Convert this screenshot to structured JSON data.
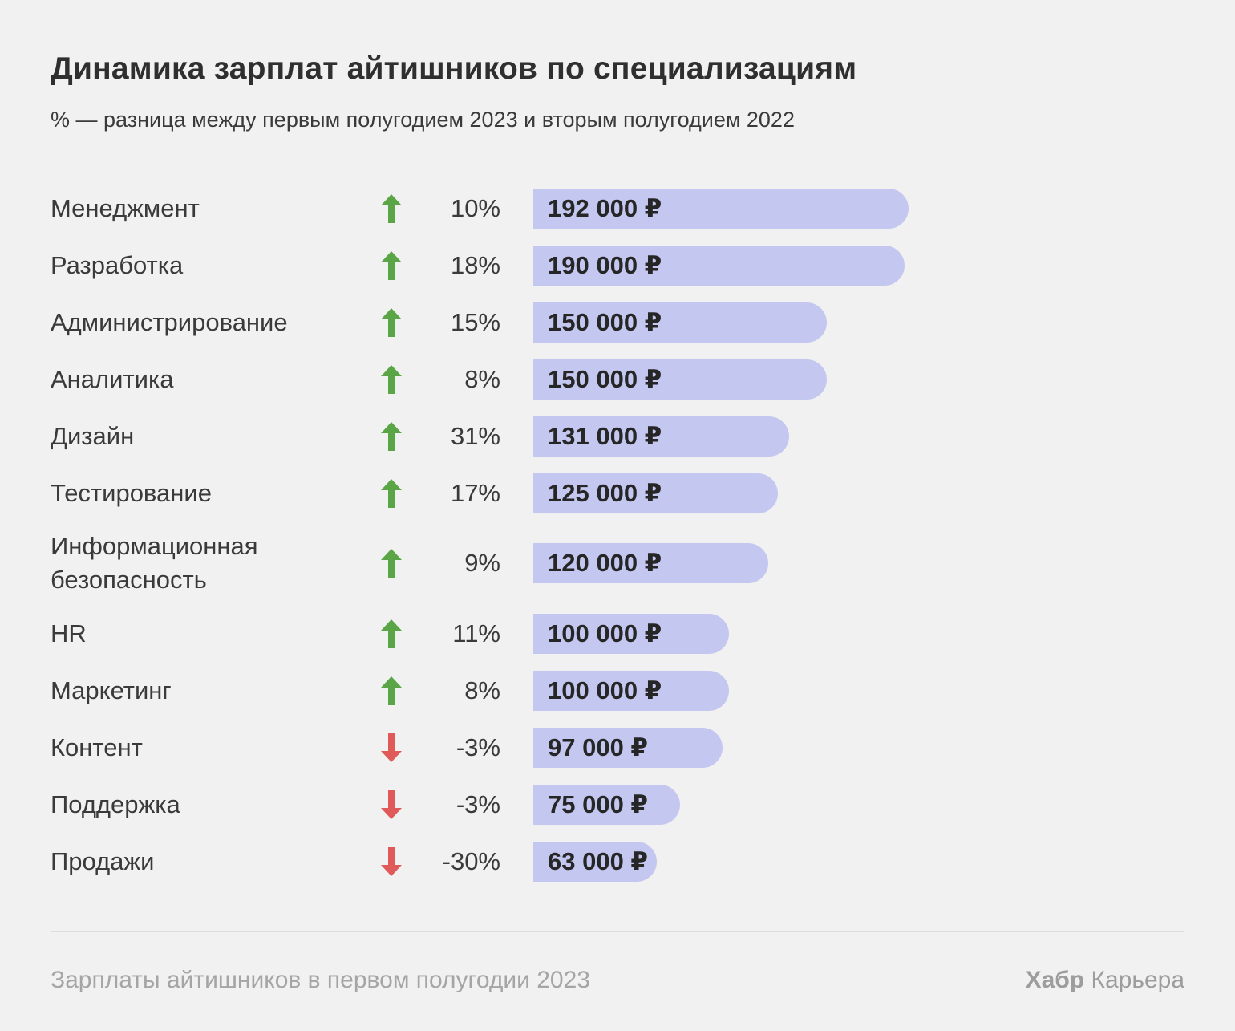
{
  "header": {
    "title": "Динамика зарплат айтишников по специализациям",
    "subtitle": "% — разница между первым полугодием 2023 и вторым полугодием 2022"
  },
  "footer": {
    "source": "Зарплаты айтишников в первом полугодии 2023",
    "brand_bold": "Хабр",
    "brand_rest": "Карьера"
  },
  "colors": {
    "bar": "#c4c8f0",
    "up": "#5aa545",
    "down": "#e05a5a",
    "background": "#f1f1f1"
  },
  "chart_data": {
    "type": "bar",
    "orientation": "horizontal",
    "title": "Динамика зарплат айтишников по специализациям",
    "subtitle": "% — разница между первым полугодием 2023 и вторым полугодием 2022",
    "xlim": [
      0,
      192000
    ],
    "categories": [
      "Менеджмент",
      "Разработка",
      "Администрирование",
      "Аналитика",
      "Дизайн",
      "Тестирование",
      "Информационная безопасность",
      "HR",
      "Маркетинг",
      "Контент",
      "Поддержка",
      "Продажи"
    ],
    "values": [
      192000,
      190000,
      150000,
      150000,
      131000,
      125000,
      120000,
      100000,
      100000,
      97000,
      75000,
      63000
    ],
    "value_labels": [
      "192 000 ₽",
      "190 000 ₽",
      "150 000 ₽",
      "150 000 ₽",
      "131 000 ₽",
      "125 000 ₽",
      "120 000 ₽",
      "100 000 ₽",
      "100 000 ₽",
      "97 000 ₽",
      "75 000 ₽",
      "63 000 ₽"
    ],
    "change_labels": [
      "10%",
      "18%",
      "15%",
      "8%",
      "31%",
      "17%",
      "9%",
      "11%",
      "8%",
      "-3%",
      "-3%",
      "-30%"
    ],
    "directions": [
      "up",
      "up",
      "up",
      "up",
      "up",
      "up",
      "up",
      "up",
      "up",
      "down",
      "down",
      "down"
    ]
  }
}
